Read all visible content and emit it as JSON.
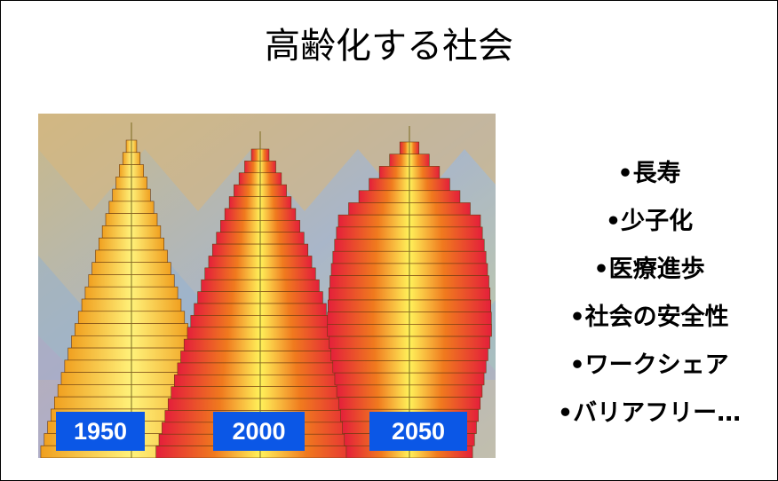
{
  "title": "高齢化する社会",
  "figure": {
    "year_labels": [
      "1950",
      "2000",
      "2050"
    ]
  },
  "bullets": [
    "•長寿",
    "•少子化",
    "•医療進歩",
    "•社会の安全性",
    "•ワークシェア",
    "•バリアフリー…"
  ]
}
